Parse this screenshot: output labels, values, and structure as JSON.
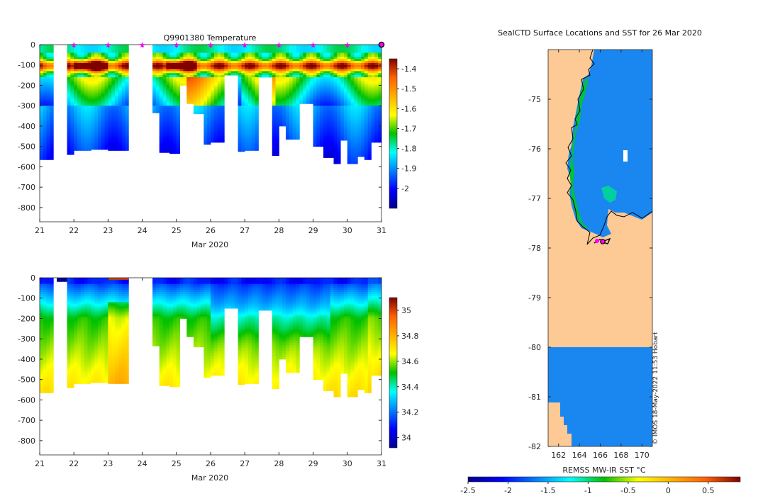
{
  "chart_data": [
    {
      "type": "heatmap",
      "title": "Q9901380  Temperature",
      "xlabel": "Mar 2020",
      "ylabel": "",
      "x_ticks": [
        "21",
        "22",
        "23",
        "24",
        "25",
        "26",
        "27",
        "28",
        "29",
        "30",
        "31"
      ],
      "y_ticks": [
        "0",
        "-100",
        "-200",
        "-300",
        "-400",
        "-500",
        "-600",
        "-700",
        "-800"
      ],
      "xlim": [
        21,
        31
      ],
      "ylim": [
        -870,
        0
      ],
      "colorbar": {
        "range": [
          -2.1,
          -1.35
        ],
        "ticks": [
          "-1.4",
          "-1.5",
          "-1.6",
          "-1.7",
          "-1.8",
          "-1.9",
          "-2"
        ],
        "tick_values": [
          -1.4,
          -1.5,
          -1.6,
          -1.7,
          -1.8,
          -1.9,
          -2.0
        ],
        "colormap": "jet"
      },
      "surface_markers": [
        22.0,
        23.0,
        24.0,
        25.0,
        26.0,
        27.0,
        28.0,
        29.0,
        30.0
      ],
      "marker_color": "#ff00ff",
      "end_marker": 31.0,
      "profiles": [
        {
          "x0": 21.0,
          "x1": 21.4,
          "bottom": -565
        },
        {
          "x0": 21.8,
          "x1": 22.0,
          "bottom": -540
        },
        {
          "x0": 22.0,
          "x1": 22.5,
          "bottom": -520
        },
        {
          "x0": 22.5,
          "x1": 23.0,
          "bottom": -515
        },
        {
          "x0": 23.0,
          "x1": 23.6,
          "bottom": -520
        },
        {
          "x0": 24.3,
          "x1": 24.5,
          "bottom": -335
        },
        {
          "x0": 24.5,
          "x1": 24.8,
          "bottom": -530
        },
        {
          "x0": 24.8,
          "x1": 25.1,
          "bottom": -535
        },
        {
          "x0": 25.1,
          "x1": 25.3,
          "bottom": -200
        },
        {
          "x0": 25.3,
          "x1": 25.5,
          "bottom": -290
        },
        {
          "x0": 25.5,
          "x1": 25.8,
          "bottom": -340
        },
        {
          "x0": 25.8,
          "x1": 26.0,
          "bottom": -490
        },
        {
          "x0": 26.0,
          "x1": 26.4,
          "bottom": -480
        },
        {
          "x0": 26.4,
          "x1": 26.8,
          "bottom": -150
        },
        {
          "x0": 26.8,
          "x1": 27.0,
          "bottom": -525
        },
        {
          "x0": 27.0,
          "x1": 27.4,
          "bottom": -520
        },
        {
          "x0": 27.4,
          "x1": 27.8,
          "bottom": -160
        },
        {
          "x0": 27.8,
          "x1": 28.0,
          "bottom": -545
        },
        {
          "x0": 28.0,
          "x1": 28.2,
          "bottom": -400
        },
        {
          "x0": 28.2,
          "x1": 28.6,
          "bottom": -465
        },
        {
          "x0": 28.6,
          "x1": 29.0,
          "bottom": -290
        },
        {
          "x0": 29.0,
          "x1": 29.3,
          "bottom": -500
        },
        {
          "x0": 29.3,
          "x1": 29.6,
          "bottom": -555
        },
        {
          "x0": 29.6,
          "x1": 29.8,
          "bottom": -585
        },
        {
          "x0": 29.8,
          "x1": 30.0,
          "bottom": -470
        },
        {
          "x0": 30.0,
          "x1": 30.3,
          "bottom": -585
        },
        {
          "x0": 30.3,
          "x1": 30.5,
          "bottom": -550
        },
        {
          "x0": 30.5,
          "x1": 30.7,
          "bottom": -565
        },
        {
          "x0": 30.7,
          "x1": 31.0,
          "bottom": -480
        }
      ]
    },
    {
      "type": "heatmap",
      "title": "",
      "xlabel": "Mar 2020",
      "ylabel": "",
      "x_ticks": [
        "21",
        "22",
        "23",
        "24",
        "25",
        "26",
        "27",
        "28",
        "29",
        "30",
        "31"
      ],
      "y_ticks": [
        "0",
        "-100",
        "-200",
        "-300",
        "-400",
        "-500",
        "-600",
        "-700",
        "-800"
      ],
      "xlim": [
        21,
        31
      ],
      "ylim": [
        -870,
        0
      ],
      "colorbar": {
        "range": [
          33.92,
          35.1
        ],
        "ticks": [
          "35",
          "34.8",
          "34.6",
          "34.4",
          "34.2",
          "34"
        ],
        "tick_values": [
          35.0,
          34.8,
          34.6,
          34.4,
          34.2,
          34.0
        ],
        "colormap": "jet"
      }
    },
    {
      "type": "heatmap",
      "title": "SealCTD Surface Locations and SST for 26 Mar 2020",
      "xlabel": "REMSS MW-IR SST °C",
      "x_ticks": [
        "162",
        "164",
        "166",
        "168",
        "170"
      ],
      "y_ticks": [
        "-75",
        "-76",
        "-77",
        "-78",
        "-79",
        "-80",
        "-81",
        "-82"
      ],
      "xlim": [
        161,
        171
      ],
      "ylim": [
        -82,
        -74
      ],
      "colorbar": {
        "range": [
          -2.5,
          0.9
        ],
        "ticks": [
          "-2.5",
          "-2",
          "-1.5",
          "-1",
          "-0.5",
          "0",
          "0.5"
        ],
        "tick_values": [
          -2.5,
          -2.0,
          -1.5,
          -1.0,
          -0.5,
          0.0,
          0.5
        ],
        "colormap": "jet"
      },
      "land_color": "#fdc994",
      "track_end": {
        "lon": 166.2,
        "lat": -77.87
      }
    }
  ],
  "credit": "© IMOS 18-May-2022 11:53 Hobart"
}
